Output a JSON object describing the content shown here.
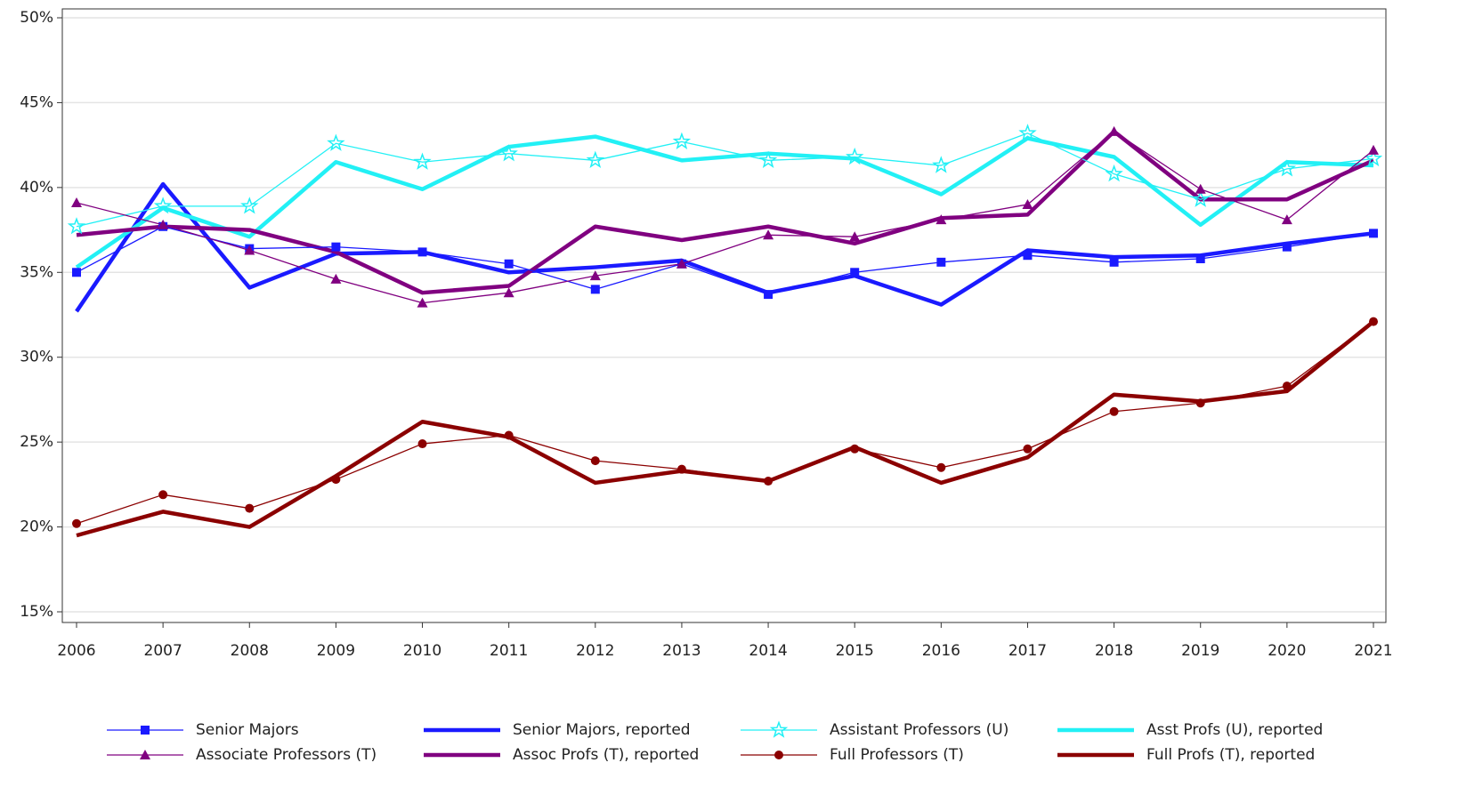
{
  "chart_data": {
    "type": "line",
    "x": [
      2006,
      2007,
      2008,
      2009,
      2010,
      2011,
      2012,
      2013,
      2014,
      2015,
      2016,
      2017,
      2018,
      2019,
      2020,
      2021
    ],
    "xlim": [
      2006,
      2021
    ],
    "xticks": [
      2006,
      2007,
      2008,
      2009,
      2010,
      2011,
      2012,
      2013,
      2014,
      2015,
      2016,
      2017,
      2018,
      2019,
      2020,
      2021
    ],
    "ylim": [
      15,
      50
    ],
    "yticks": [
      {
        "value": 15,
        "label": "15%"
      },
      {
        "value": 20,
        "label": "20%"
      },
      {
        "value": 25,
        "label": "25%"
      },
      {
        "value": 30,
        "label": "30%"
      },
      {
        "value": 35,
        "label": "35%"
      },
      {
        "value": 40,
        "label": "40%"
      },
      {
        "value": 45,
        "label": "45%"
      },
      {
        "value": 50,
        "label": "50%"
      }
    ],
    "grid": true,
    "legend": "bottom",
    "series": [
      {
        "name": "Senior Majors",
        "color": "#1a1aff",
        "marker": "square",
        "values": [
          35.0,
          37.7,
          36.4,
          36.5,
          36.2,
          35.5,
          34.0,
          35.5,
          33.7,
          35.0,
          35.6,
          36.0,
          35.6,
          35.8,
          36.5,
          37.3
        ]
      },
      {
        "name": "Senior Majors, reported",
        "color": "#1a1aff",
        "values": [
          32.7,
          40.2,
          34.1,
          36.1,
          36.2,
          35.0,
          35.3,
          35.7,
          33.8,
          34.8,
          33.1,
          36.3,
          35.9,
          36.0,
          36.7,
          37.3
        ]
      },
      {
        "name": "Assistant Professors (U)",
        "color": "#22f0f5",
        "marker": "star",
        "values": [
          37.7,
          38.9,
          38.9,
          42.6,
          41.5,
          42.0,
          41.6,
          42.7,
          41.6,
          41.8,
          41.3,
          43.2,
          40.8,
          39.3,
          41.1,
          41.7
        ]
      },
      {
        "name": "Asst Profs (U), reported",
        "color": "#22f0f5",
        "values": [
          35.3,
          38.8,
          37.1,
          41.5,
          39.9,
          42.4,
          43.0,
          41.6,
          42.0,
          41.7,
          39.6,
          42.9,
          41.8,
          37.8,
          41.5,
          41.3
        ]
      },
      {
        "name": "Associate Professors (T)",
        "color": "#800080",
        "marker": "triangle",
        "values": [
          39.1,
          37.8,
          36.3,
          34.6,
          33.2,
          33.8,
          34.8,
          35.5,
          37.2,
          37.1,
          38.1,
          39.0,
          43.3,
          39.9,
          38.1,
          42.2
        ]
      },
      {
        "name": "Assoc Profs (T), reported",
        "color": "#800080",
        "values": [
          37.2,
          37.7,
          37.5,
          36.2,
          33.8,
          34.2,
          37.7,
          36.9,
          37.7,
          36.7,
          38.2,
          38.4,
          43.3,
          39.3,
          39.3,
          41.6
        ]
      },
      {
        "name": "Full Professors (T)",
        "color": "#8b0000",
        "marker": "circle",
        "values": [
          20.2,
          21.9,
          21.1,
          22.8,
          24.9,
          25.4,
          23.9,
          23.4,
          22.7,
          24.6,
          23.5,
          24.6,
          26.8,
          27.3,
          28.3,
          32.1
        ]
      },
      {
        "name": "Full Profs (T), reported",
        "color": "#8b0000",
        "values": [
          19.5,
          20.9,
          20.0,
          23.0,
          26.2,
          25.3,
          22.6,
          23.3,
          22.7,
          24.7,
          22.6,
          24.1,
          27.8,
          27.4,
          28.0,
          32.1
        ]
      }
    ]
  }
}
